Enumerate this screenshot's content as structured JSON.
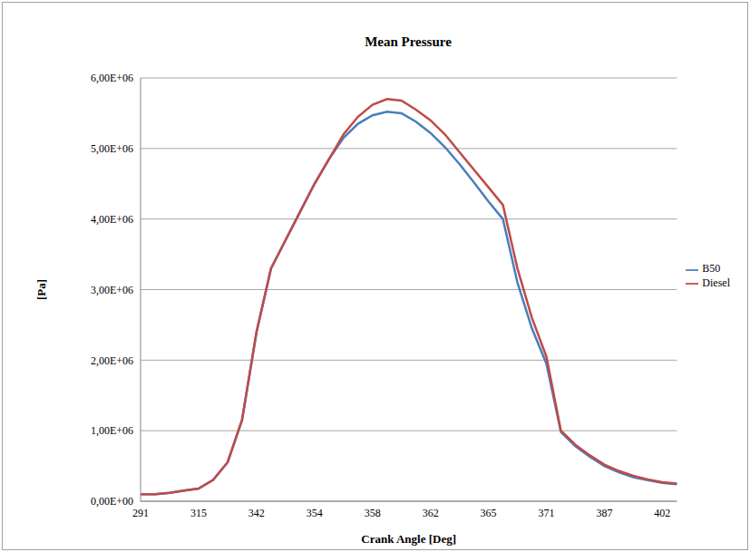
{
  "chart_data": {
    "type": "line",
    "title": "Mean Pressure",
    "x_label": "Crank Angle [Deg]",
    "y_label": "[Pa]",
    "categories": [
      291,
      null,
      null,
      null,
      315,
      null,
      null,
      null,
      342,
      null,
      null,
      null,
      354,
      null,
      null,
      null,
      358,
      null,
      null,
      null,
      362,
      null,
      null,
      null,
      365,
      null,
      null,
      null,
      371,
      null,
      null,
      null,
      387,
      null,
      null,
      null,
      402,
      null
    ],
    "series": [
      {
        "name": "B50",
        "color": "#4a7ebb",
        "values": [
          100000,
          100000,
          120000,
          150000,
          180000,
          300000,
          550000,
          1150000,
          2400000,
          3300000,
          3700000,
          4100000,
          4500000,
          4850000,
          5150000,
          5350000,
          5470000,
          5520000,
          5500000,
          5380000,
          5220000,
          5020000,
          4780000,
          4520000,
          4250000,
          4000000,
          3100000,
          2450000,
          1950000,
          980000,
          780000,
          630000,
          500000,
          410000,
          340000,
          300000,
          260000,
          240000
        ]
      },
      {
        "name": "Diesel",
        "color": "#be4b48",
        "values": [
          100000,
          100000,
          120000,
          150000,
          180000,
          300000,
          550000,
          1150000,
          2400000,
          3300000,
          3700000,
          4100000,
          4500000,
          4850000,
          5200000,
          5450000,
          5620000,
          5700000,
          5680000,
          5550000,
          5400000,
          5200000,
          4950000,
          4700000,
          4450000,
          4200000,
          3300000,
          2600000,
          2050000,
          1000000,
          800000,
          650000,
          520000,
          430000,
          360000,
          310000,
          270000,
          250000
        ]
      }
    ],
    "ylim": [
      0,
      6000000
    ],
    "yticks": [
      {
        "value": 0,
        "label": "0,00E+00"
      },
      {
        "value": 1000000,
        "label": "1,00E+06"
      },
      {
        "value": 2000000,
        "label": "2,00E+06"
      },
      {
        "value": 3000000,
        "label": "3,00E+06"
      },
      {
        "value": 4000000,
        "label": "4,00E+06"
      },
      {
        "value": 5000000,
        "label": "5,00E+06"
      },
      {
        "value": 6000000,
        "label": "6,00E+06"
      }
    ],
    "grid": true,
    "legend": "right"
  }
}
